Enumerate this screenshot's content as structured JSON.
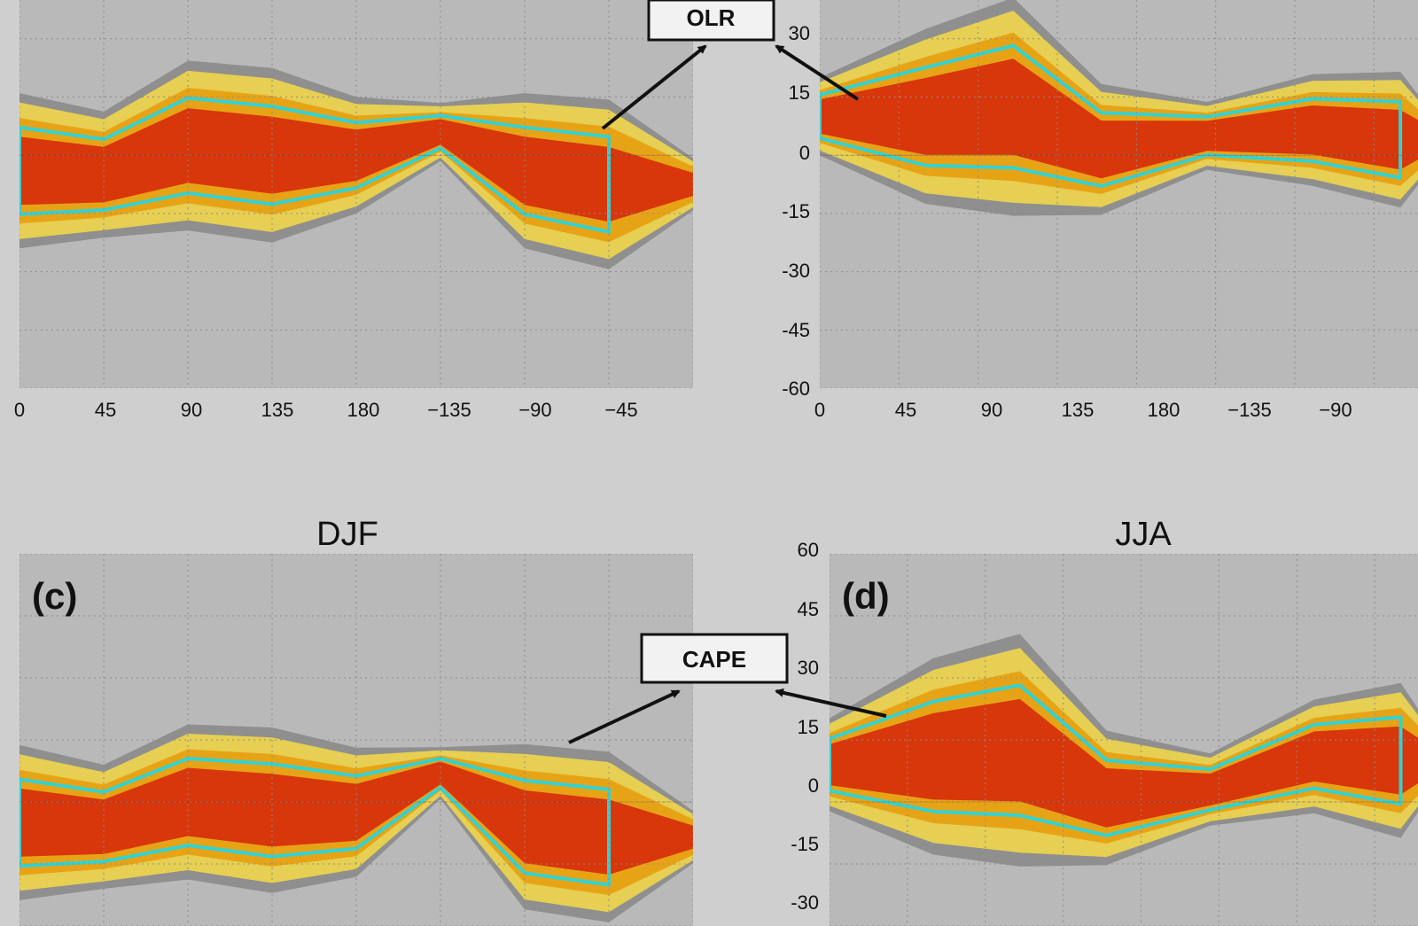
{
  "colors": {
    "background": "#cfcfcf",
    "map_ocean": "#b9b9b9",
    "grid": "#8c8c8c",
    "coast": "#1a1a1a",
    "band_yellow": "#e6cf52",
    "band_orange": "#e7a316",
    "band_red": "#d8360b",
    "band_dark": "#6e6e6e",
    "contour_cyan": "#32d2d2",
    "arrow": "#111111"
  },
  "annotations": [
    {
      "id": "olr",
      "text": "OLR"
    },
    {
      "id": "cape",
      "text": "CAPE"
    }
  ],
  "chart_data": [
    {
      "panel": "a",
      "type": "heatmap",
      "title": "",
      "panel_label": "",
      "xlim": [
        0,
        360
      ],
      "ylim": [
        -60,
        40
      ],
      "x_ticks": [
        "0",
        "45",
        "90",
        "135",
        "180",
        "−135",
        "−90",
        "−45"
      ],
      "y_ticks": [],
      "grid": true,
      "bands": [
        {
          "lon": 0,
          "south": -20,
          "north": 12
        },
        {
          "lon": 45,
          "south": -18,
          "north": 8
        },
        {
          "lon": 90,
          "south": -15,
          "north": 20
        },
        {
          "lon": 135,
          "south": -18,
          "north": 18
        },
        {
          "lon": 180,
          "south": -12,
          "north": 12
        },
        {
          "lon": 225,
          "south": 0,
          "north": 12
        },
        {
          "lon": 270,
          "south": -20,
          "north": 12
        },
        {
          "lon": 315,
          "south": -25,
          "north": 10
        }
      ]
    },
    {
      "panel": "b",
      "type": "heatmap",
      "title": "",
      "panel_label": "",
      "xlim": [
        0,
        340
      ],
      "ylim": [
        -60,
        40
      ],
      "x_ticks": [
        "0",
        "45",
        "90",
        "135",
        "180",
        "−135",
        "−90"
      ],
      "y_ticks": [
        "30",
        "15",
        "0",
        "-15",
        "-30",
        "-45",
        "-60"
      ],
      "grid": true,
      "bands": [
        {
          "lon": 0,
          "south": 2,
          "north": 18
        },
        {
          "lon": 60,
          "south": -8,
          "north": 28
        },
        {
          "lon": 110,
          "south": -10,
          "north": 35
        },
        {
          "lon": 160,
          "south": -12,
          "north": 15
        },
        {
          "lon": 220,
          "south": -2,
          "north": 12
        },
        {
          "lon": 280,
          "south": -5,
          "north": 18
        },
        {
          "lon": 330,
          "south": -10,
          "north": 18
        }
      ]
    },
    {
      "panel": "c",
      "type": "heatmap",
      "title": "DJF",
      "panel_label": "(c)",
      "xlim": [
        0,
        360
      ],
      "ylim": [
        -30,
        60
      ],
      "x_ticks": [],
      "y_ticks": [],
      "grid": true,
      "bands": [
        {
          "lon": 0,
          "south": -20,
          "north": 10
        },
        {
          "lon": 45,
          "south": -18,
          "north": 6
        },
        {
          "lon": 90,
          "south": -15,
          "north": 15
        },
        {
          "lon": 135,
          "south": -18,
          "north": 14
        },
        {
          "lon": 180,
          "south": -15,
          "north": 10
        },
        {
          "lon": 225,
          "south": 2,
          "north": 12
        },
        {
          "lon": 270,
          "south": -22,
          "north": 10
        },
        {
          "lon": 315,
          "south": -25,
          "north": 8
        }
      ]
    },
    {
      "panel": "d",
      "type": "heatmap",
      "title": "JJA",
      "panel_label": "(d)",
      "xlim": [
        0,
        340
      ],
      "ylim": [
        -30,
        60
      ],
      "x_ticks": [],
      "y_ticks": [
        "60",
        "45",
        "30",
        "15",
        "0",
        "-15",
        "-30"
      ],
      "grid": true,
      "bands": [
        {
          "lon": 0,
          "south": 0,
          "north": 18
        },
        {
          "lon": 60,
          "south": -8,
          "north": 30
        },
        {
          "lon": 110,
          "south": -10,
          "north": 35
        },
        {
          "lon": 160,
          "south": -12,
          "north": 14
        },
        {
          "lon": 220,
          "south": -4,
          "north": 10
        },
        {
          "lon": 280,
          "south": 0,
          "north": 22
        },
        {
          "lon": 330,
          "south": -5,
          "north": 25
        }
      ]
    }
  ]
}
